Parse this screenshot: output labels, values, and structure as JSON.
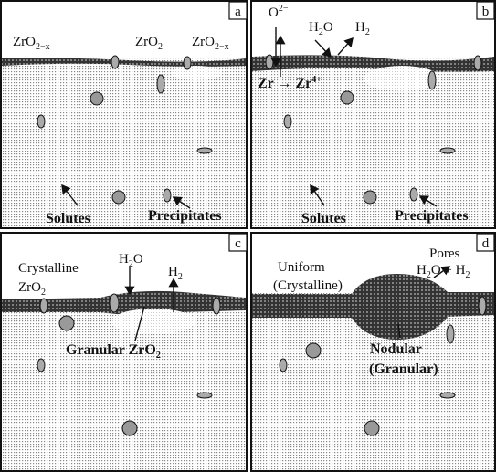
{
  "panels": [
    {
      "label": "a",
      "texts": [
        {
          "parts": [
            {
              "text": "ZrO"
            },
            {
              "sub": "2−x"
            }
          ]
        },
        {
          "parts": [
            {
              "text": "ZrO"
            },
            {
              "sub": "2"
            }
          ]
        },
        {
          "parts": [
            {
              "text": "ZrO"
            },
            {
              "sub": "2−x"
            }
          ]
        },
        {
          "parts": [
            {
              "text": "Solutes"
            }
          ]
        },
        {
          "parts": [
            {
              "text": "Precipitates"
            }
          ]
        }
      ]
    },
    {
      "label": "b",
      "texts": [
        {
          "parts": [
            {
              "text": "O"
            },
            {
              "sup": "2−"
            }
          ]
        },
        {
          "parts": [
            {
              "text": "H"
            },
            {
              "sub": "2"
            },
            {
              "text": "O"
            }
          ]
        },
        {
          "parts": [
            {
              "text": "H"
            },
            {
              "sub": "2"
            }
          ]
        },
        {
          "parts": [
            {
              "text": "Zr → Zr"
            },
            {
              "sup": "4+"
            }
          ]
        },
        {
          "parts": [
            {
              "text": "Solutes"
            }
          ]
        },
        {
          "parts": [
            {
              "text": "Precipitates"
            }
          ]
        }
      ]
    },
    {
      "label": "c",
      "texts": [
        {
          "parts": [
            {
              "text": "Crystalline"
            }
          ]
        },
        {
          "parts": [
            {
              "text": "ZrO"
            },
            {
              "sub": "2"
            }
          ]
        },
        {
          "parts": [
            {
              "text": "H"
            },
            {
              "sub": "2"
            },
            {
              "text": "O"
            }
          ]
        },
        {
          "parts": [
            {
              "text": "H"
            },
            {
              "sub": "2"
            }
          ]
        },
        {
          "parts": [
            {
              "text": "Granular ZrO"
            },
            {
              "sub": "2"
            }
          ]
        }
      ]
    },
    {
      "label": "d",
      "texts": [
        {
          "parts": [
            {
              "text": "Uniform"
            }
          ]
        },
        {
          "parts": [
            {
              "text": "(Crystalline)"
            }
          ]
        },
        {
          "parts": [
            {
              "text": "Pores"
            }
          ]
        },
        {
          "parts": [
            {
              "text": "H"
            },
            {
              "sub": "2"
            },
            {
              "text": "O + H"
            },
            {
              "sub": "2"
            }
          ]
        },
        {
          "parts": [
            {
              "text": "Nodular"
            }
          ]
        },
        {
          "parts": [
            {
              "text": "(Granular)"
            }
          ]
        }
      ]
    }
  ]
}
